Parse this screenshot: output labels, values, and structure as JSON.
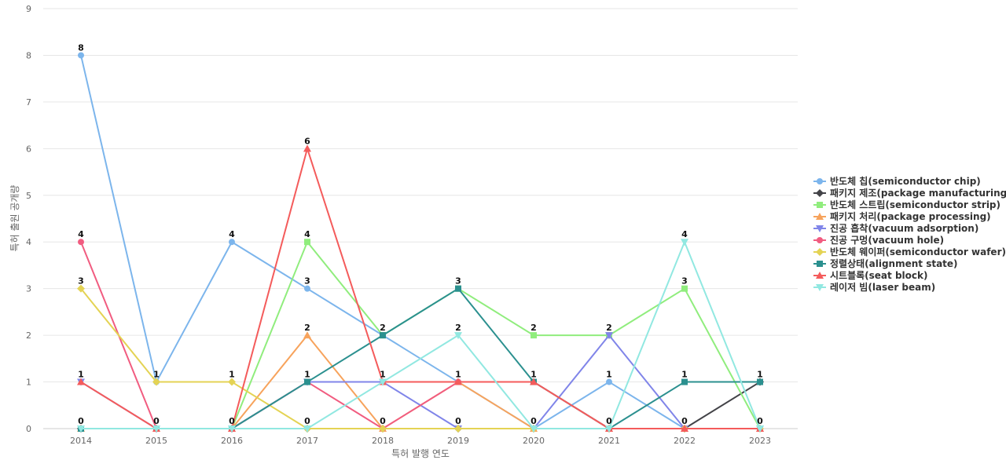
{
  "chart_data": {
    "type": "line",
    "title": "",
    "xlabel": "특허 발행 연도",
    "ylabel": "특허 출원 공개량",
    "x": [
      "2014",
      "2015",
      "2016",
      "2017",
      "2018",
      "2019",
      "2020",
      "2021",
      "2022",
      "2023"
    ],
    "ylim": [
      0,
      9
    ],
    "yticks": [
      0,
      1,
      2,
      3,
      4,
      5,
      6,
      7,
      8,
      9
    ],
    "grid": true,
    "legend_position": "right",
    "series": [
      {
        "name": "반도체 칩(semiconductor chip)",
        "color": "#7cb5ec",
        "marker": "circle",
        "values": [
          8,
          1,
          4,
          3,
          2,
          1,
          0,
          1,
          0,
          0
        ]
      },
      {
        "name": "패키지 제조(package manufacturing)",
        "color": "#434348",
        "marker": "diamond",
        "values": [
          0,
          0,
          0,
          0,
          0,
          0,
          0,
          0,
          0,
          1
        ]
      },
      {
        "name": "반도체 스트립(semiconductor strip)",
        "color": "#90ed7d",
        "marker": "square",
        "values": [
          0,
          0,
          0,
          4,
          2,
          3,
          2,
          2,
          3,
          0
        ]
      },
      {
        "name": "패키지 처리(package processing)",
        "color": "#f7a35c",
        "marker": "triangle",
        "values": [
          0,
          0,
          0,
          2,
          0,
          1,
          0,
          0,
          0,
          0
        ]
      },
      {
        "name": "진공 흡착(vacuum adsorption)",
        "color": "#8085e9",
        "marker": "triangle-down",
        "values": [
          1,
          0,
          0,
          1,
          1,
          0,
          0,
          2,
          0,
          0
        ]
      },
      {
        "name": "진공 구멍(vacuum hole)",
        "color": "#f15c80",
        "marker": "circle",
        "values": [
          4,
          0,
          0,
          1,
          0,
          1,
          1,
          0,
          0,
          0
        ]
      },
      {
        "name": "반도체 웨이퍼(semiconductor wafer)",
        "color": "#e4d354",
        "marker": "diamond",
        "values": [
          3,
          1,
          1,
          0,
          0,
          0,
          0,
          0,
          0,
          0
        ]
      },
      {
        "name": "정렬상태(alignment state)",
        "color": "#2b908f",
        "marker": "square",
        "values": [
          0,
          0,
          0,
          1,
          2,
          3,
          1,
          0,
          1,
          1
        ]
      },
      {
        "name": "시트블록(seat block)",
        "color": "#f45b5b",
        "marker": "triangle",
        "values": [
          1,
          0,
          0,
          6,
          1,
          1,
          1,
          0,
          0,
          0
        ]
      },
      {
        "name": "레이저 빔(laser beam)",
        "color": "#91e8e1",
        "marker": "triangle-down",
        "values": [
          0,
          0,
          0,
          0,
          1,
          2,
          0,
          0,
          4,
          0
        ]
      }
    ],
    "data_labels": [
      {
        "x": "2014",
        "text": "8",
        "value": 8
      },
      {
        "x": "2014",
        "text": "4",
        "value": 4
      },
      {
        "x": "2014",
        "text": "3",
        "value": 3
      },
      {
        "x": "2014",
        "text": "1",
        "value": 1
      },
      {
        "x": "2014",
        "text": "0",
        "value": 0
      },
      {
        "x": "2015",
        "text": "1",
        "value": 1
      },
      {
        "x": "2015",
        "text": "0",
        "value": 0
      },
      {
        "x": "2016",
        "text": "4",
        "value": 4
      },
      {
        "x": "2016",
        "text": "1",
        "value": 1
      },
      {
        "x": "2016",
        "text": "0",
        "value": 0
      },
      {
        "x": "2017",
        "text": "6",
        "value": 6
      },
      {
        "x": "2017",
        "text": "4",
        "value": 4
      },
      {
        "x": "2017",
        "text": "3",
        "value": 3
      },
      {
        "x": "2017",
        "text": "2",
        "value": 2
      },
      {
        "x": "2017",
        "text": "1",
        "value": 1
      },
      {
        "x": "2017",
        "text": "0",
        "value": 0
      },
      {
        "x": "2018",
        "text": "2",
        "value": 2
      },
      {
        "x": "2018",
        "text": "1",
        "value": 1
      },
      {
        "x": "2018",
        "text": "0",
        "value": 0
      },
      {
        "x": "2019",
        "text": "3",
        "value": 3
      },
      {
        "x": "2019",
        "text": "2",
        "value": 2
      },
      {
        "x": "2019",
        "text": "1",
        "value": 1
      },
      {
        "x": "2019",
        "text": "0",
        "value": 0
      },
      {
        "x": "2020",
        "text": "2",
        "value": 2
      },
      {
        "x": "2020",
        "text": "1",
        "value": 1
      },
      {
        "x": "2020",
        "text": "0",
        "value": 0
      },
      {
        "x": "2021",
        "text": "2",
        "value": 2
      },
      {
        "x": "2021",
        "text": "1",
        "value": 1
      },
      {
        "x": "2021",
        "text": "0",
        "value": 0
      },
      {
        "x": "2022",
        "text": "4",
        "value": 4
      },
      {
        "x": "2022",
        "text": "3",
        "value": 3
      },
      {
        "x": "2022",
        "text": "1",
        "value": 1
      },
      {
        "x": "2022",
        "text": "0",
        "value": 0
      },
      {
        "x": "2023",
        "text": "1",
        "value": 1
      },
      {
        "x": "2023",
        "text": "0",
        "value": 0
      }
    ]
  }
}
